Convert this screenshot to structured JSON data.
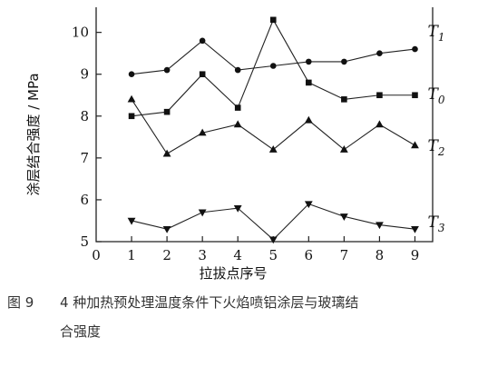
{
  "chart_data": {
    "type": "line",
    "xlabel": "拉拔点序号",
    "ylabel": "涂层结合强度 / MPa",
    "x": [
      1,
      2,
      3,
      4,
      5,
      6,
      7,
      8,
      9
    ],
    "xlim": [
      0,
      9.5
    ],
    "ylim": [
      5,
      10.6
    ],
    "xticks": [
      "0",
      "1",
      "2",
      "3",
      "4",
      "5",
      "6",
      "7",
      "8",
      "9"
    ],
    "yticks": [
      "5",
      "6",
      "7",
      "8",
      "9",
      "10"
    ],
    "grid": false,
    "series": [
      {
        "name": "T",
        "subscript": "1",
        "marker": "circle",
        "values": [
          9.0,
          9.1,
          9.8,
          9.1,
          9.2,
          9.3,
          9.3,
          9.5,
          9.6
        ]
      },
      {
        "name": "T",
        "subscript": "0",
        "marker": "square",
        "values": [
          8.0,
          8.1,
          9.0,
          8.2,
          10.3,
          8.8,
          8.4,
          8.5,
          8.5
        ]
      },
      {
        "name": "T",
        "subscript": "2",
        "marker": "triangle-up",
        "values": [
          8.4,
          7.1,
          7.6,
          7.8,
          7.2,
          7.9,
          7.2,
          7.8,
          7.3
        ]
      },
      {
        "name": "T",
        "subscript": "3",
        "marker": "triangle-down",
        "values": [
          5.5,
          5.3,
          5.7,
          5.8,
          5.05,
          5.9,
          5.6,
          5.4,
          5.3
        ]
      }
    ]
  },
  "caption": {
    "number": "图 9",
    "line1": "4 种加热预处理温度条件下火焰喷铝涂层与玻璃结",
    "line2": "合强度"
  }
}
